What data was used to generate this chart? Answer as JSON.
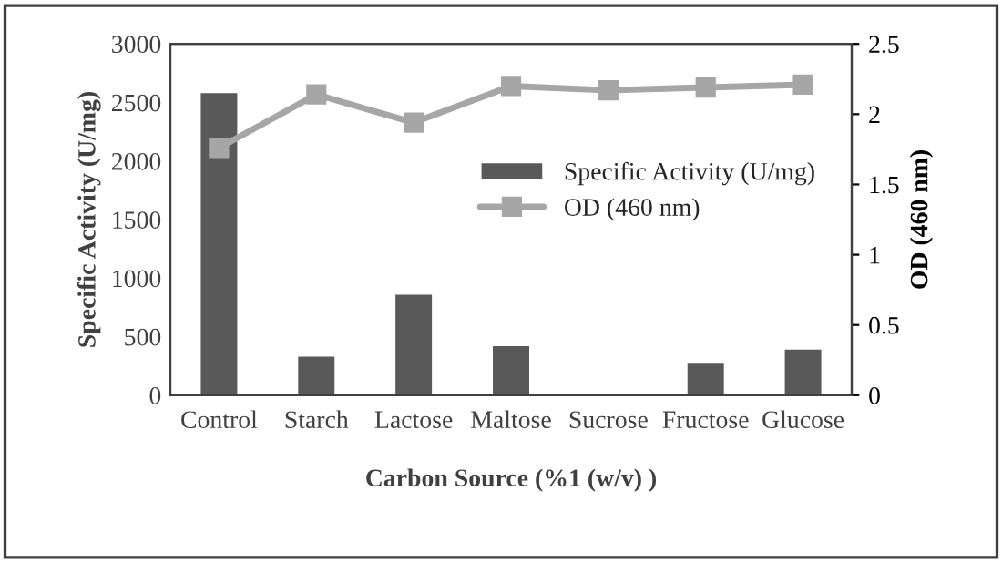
{
  "chart_data": {
    "type": "bar",
    "xlabel": "Carbon Source (%1 (w/v) )",
    "ylabel": "Specific Activity (U/mg)",
    "y2label": "OD (460 nm)",
    "categories": [
      "Control",
      "Starch",
      "Lactose",
      "Maltose",
      "Sucrose",
      "Fructose",
      "Glucose"
    ],
    "series": [
      {
        "name": "Specific Activity (U/mg)",
        "color": "#595959",
        "values": [
          2590,
          340,
          870,
          430,
          null,
          280,
          400
        ]
      },
      {
        "name": "OD (460 nm)",
        "type": "line",
        "axis": "y2",
        "color": "#a6a6a6",
        "marker": "square",
        "values": [
          1.76,
          2.14,
          1.94,
          2.2,
          2.17,
          2.19,
          2.21
        ]
      }
    ],
    "ylim": [
      0,
      3000
    ],
    "yticks": [
      0,
      500,
      1000,
      1500,
      2000,
      2500,
      3000
    ],
    "y2lim": [
      0,
      2.5
    ],
    "y2ticks": [
      0,
      0.5,
      1,
      1.5,
      2,
      2.5
    ],
    "grid": false,
    "legend": "right"
  }
}
